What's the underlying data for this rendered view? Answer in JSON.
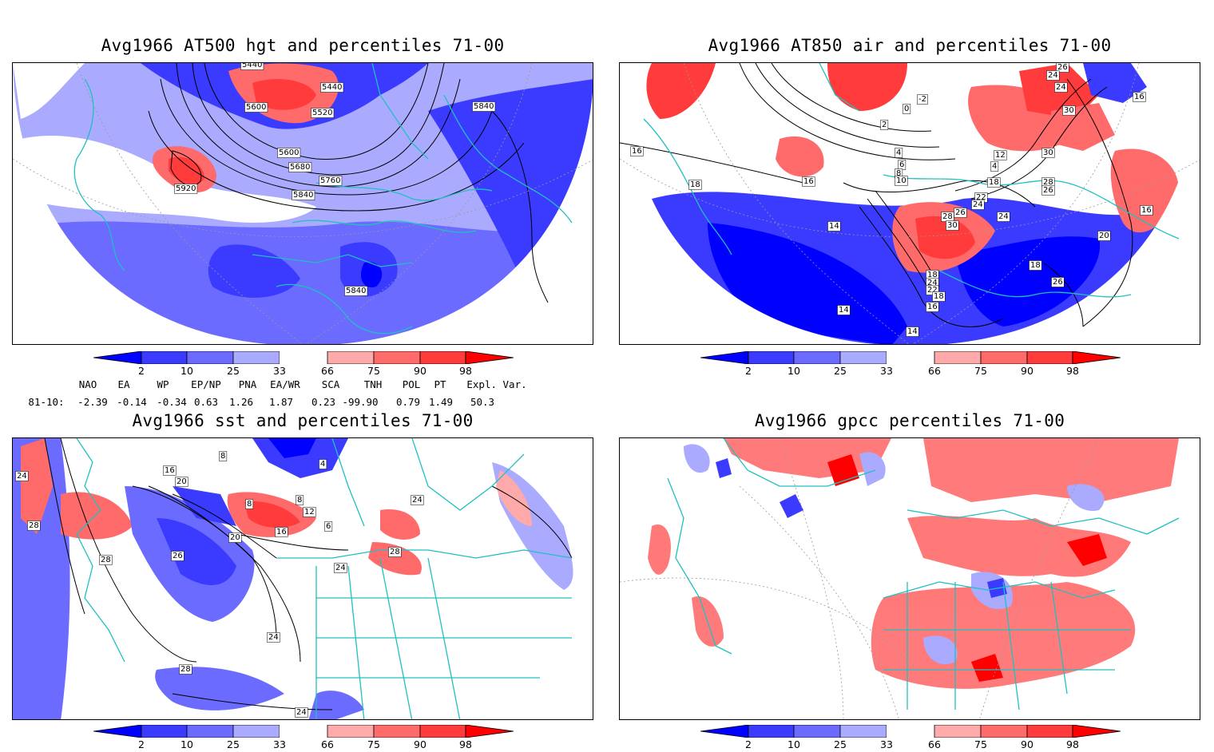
{
  "panels": [
    {
      "title": "Avg1966 AT500 hgt and percentiles 71-00",
      "contour_labels": [
        "5440",
        "5440",
        "5600",
        "5520",
        "5840",
        "5600",
        "5680",
        "5760",
        "5920",
        "5840",
        "5840"
      ]
    },
    {
      "title": "Avg1966 AT850 air and percentiles 71-00",
      "contour_labels": [
        "26",
        "24",
        "-2",
        "0",
        "2",
        "24",
        "16",
        "30",
        "4",
        "6",
        "8",
        "30",
        "12",
        "4",
        "16",
        "10",
        "18",
        "28",
        "26",
        "18",
        "16",
        "22",
        "24",
        "24",
        "26",
        "28",
        "30",
        "14",
        "16",
        "18",
        "24",
        "22",
        "20",
        "18",
        "16",
        "14",
        "18",
        "14",
        "26"
      ]
    },
    {
      "title": "Avg1966 sst and percentiles 71-00",
      "contour_labels": [
        "24",
        "28",
        "16",
        "20",
        "8",
        "4",
        "8",
        "8",
        "12",
        "16",
        "20",
        "6",
        "24",
        "24",
        "26",
        "28",
        "28",
        "24",
        "28",
        "24"
      ]
    },
    {
      "title": "Avg1966 gpcc percentiles 71-00",
      "contour_labels": []
    }
  ],
  "colorbar": {
    "labels": [
      "2",
      "10",
      "25",
      "33",
      "66",
      "75",
      "90",
      "98"
    ],
    "colors": {
      "lt2": "#0000ff",
      "b2_10": "#3b3bff",
      "b10_25": "#6b6bff",
      "b25_33": "#aaaaff",
      "b33_66": "#ffffff",
      "b66_75": "#ffaaaa",
      "b75_90": "#ff6b6b",
      "b90_98": "#ff3b3b",
      "gt98": "#ff0000"
    }
  },
  "indices": {
    "headers": [
      "NAO",
      "EA",
      "WP",
      "EP/NP",
      "PNA",
      "EA/WR",
      "SCA",
      "TNH",
      "POL",
      "PT",
      "Expl. Var."
    ],
    "row_label": "81-10:",
    "values": [
      "-2.39",
      "-0.14",
      "-0.34",
      "0.63",
      "1.26",
      "1.87",
      "0.23",
      "-99.90",
      "0.79",
      "1.49",
      "50.3"
    ]
  },
  "colors": {
    "coast": "#20c0c0",
    "contour": "#000000",
    "frame": "#000000"
  }
}
